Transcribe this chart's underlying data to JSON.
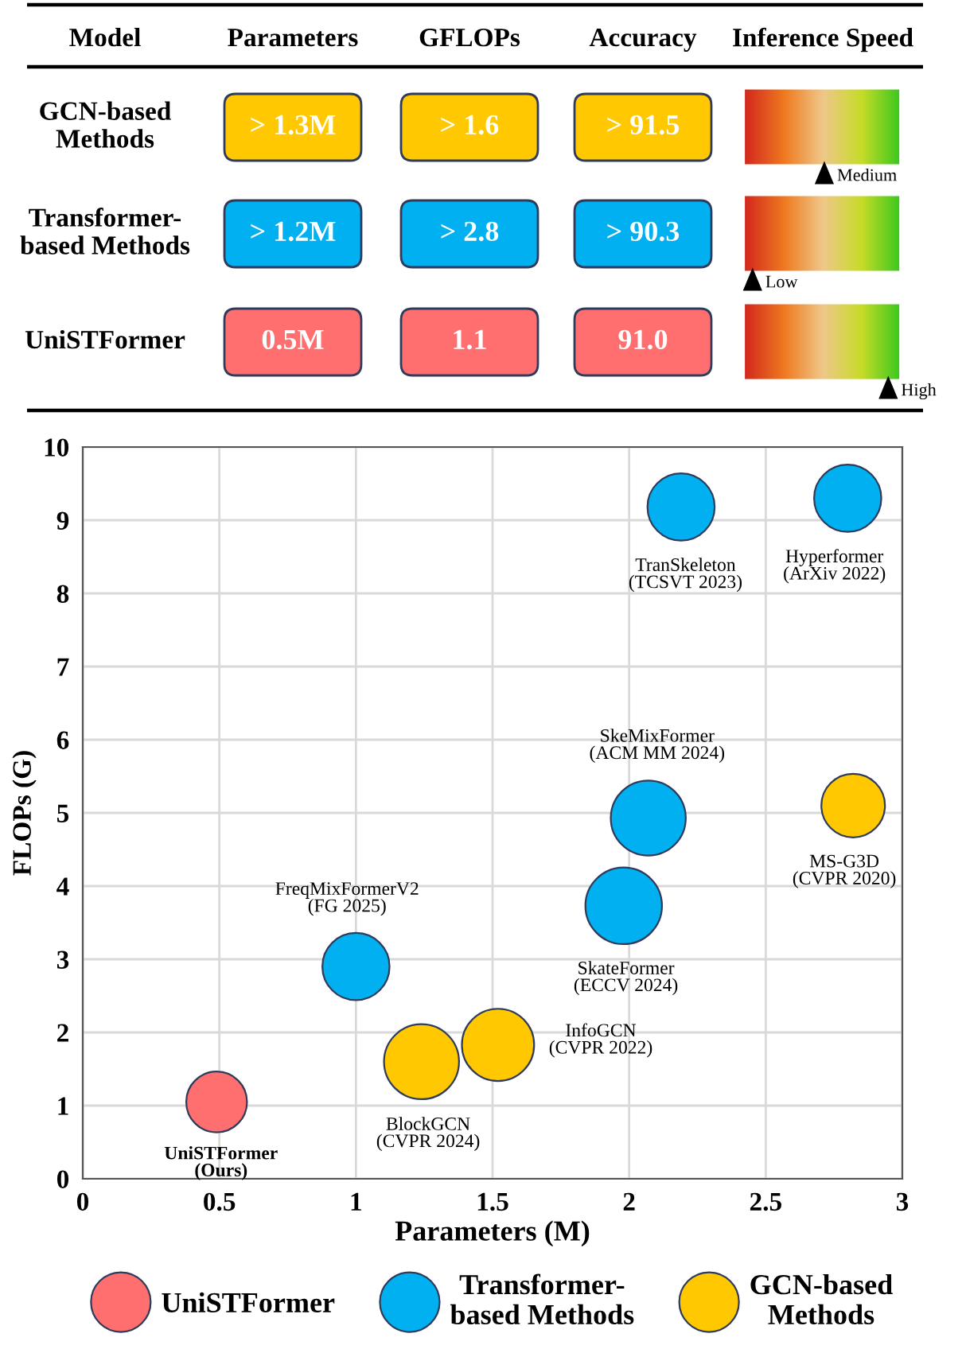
{
  "chart_data": [
    {
      "type": "other",
      "annotations": [
        "Model",
        "Parameters",
        "GFLOPs",
        "Accuracy",
        "Inference Speed",
        "GCN-based\nMethods",
        "> 1.3M",
        "> 1.6",
        "> 91.5",
        "Medium",
        "Transformer-\nbased Methods",
        "> 1.2M",
        "> 2.8",
        "> 90.3",
        "Low",
        "UniSTFormer",
        "0.5M",
        "1.1",
        "91.0",
        "High"
      ],
      "colors": [
        "#ffc800",
        "#00b0f0",
        "#ff6f6f"
      ]
    },
    {
      "type": "bubble",
      "xlabel": "Parameters (M)",
      "ylabel": "FLOPs (G)",
      "xlim": [
        0,
        3
      ],
      "ylim": [
        0,
        10
      ],
      "xticks": [
        0,
        0.5,
        1,
        1.5,
        2,
        2.5,
        3
      ],
      "yticks": [
        0,
        1,
        2,
        3,
        4,
        5,
        6,
        7,
        8,
        9,
        10
      ],
      "grid": true,
      "legend": "bottom",
      "series": [
        {
          "name": "UniSTFormer",
          "color": "#ff6f6f",
          "x": [
            0.49
          ],
          "values": [
            1.05
          ],
          "sizes": [
            0.63
          ]
        },
        {
          "name": "Transformer-\nbased Methods",
          "color": "#00b0f0",
          "x": [
            1.0,
            1.98,
            2.07,
            2.19,
            2.8
          ],
          "values": [
            2.9,
            3.73,
            4.93,
            9.18,
            9.3
          ],
          "sizes": [
            0.77,
            1,
            0.96,
            0.77,
            0.77
          ]
        },
        {
          "name": "GCN-based\nMethods",
          "color": "#ffc800",
          "x": [
            1.24,
            1.52,
            2.82
          ],
          "values": [
            1.6,
            1.83,
            5.1
          ],
          "sizes": [
            0.96,
            0.89,
            0.69
          ]
        }
      ],
      "annotations": [
        {
          "text": "UniSTFormer\n(Ours)",
          "x": 0.49,
          "y": 1.05
        },
        {
          "text": "FreqMixFormerV2\n(FG 2025)",
          "x": 1.0,
          "y": 2.9
        },
        {
          "text": "BlockGCN\n(CVPR 2024)",
          "x": 1.24,
          "y": 1.6
        },
        {
          "text": "InfoGCN\n(CVPR 2022)",
          "x": 1.52,
          "y": 1.83
        },
        {
          "text": "SkateFormer\n(ECCV 2024)",
          "x": 1.98,
          "y": 3.73
        },
        {
          "text": "SkeMixFormer\n(ACM MM 2024)",
          "x": 2.07,
          "y": 4.93
        },
        {
          "text": "TranSkeleton\n(TCSVT 2023)",
          "x": 2.19,
          "y": 9.18
        },
        {
          "text": "Hyperformer\n(ArXiv 2022)",
          "x": 2.8,
          "y": 9.3
        },
        {
          "text": "MS-G3D\n(CVPR 2020)",
          "x": 2.82,
          "y": 5.1
        }
      ]
    }
  ]
}
